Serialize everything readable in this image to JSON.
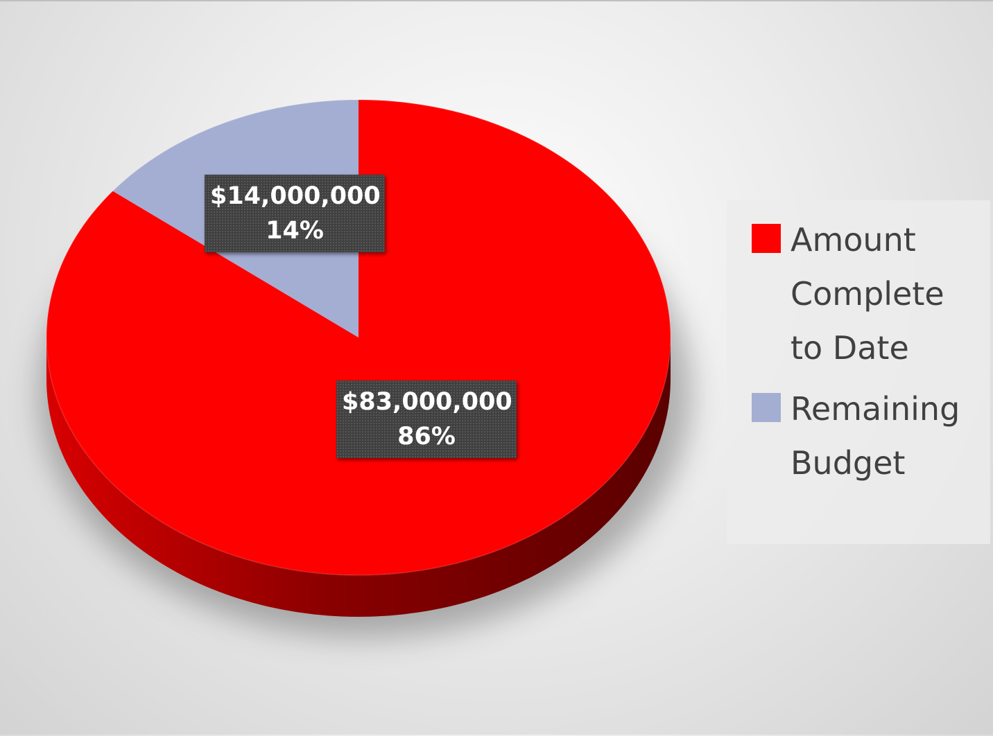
{
  "chart_data": {
    "type": "pie",
    "title": "",
    "slices": [
      {
        "name": "Amount Complete to Date",
        "value": 83000000,
        "value_label": "$83,000,000",
        "percent": 86,
        "percent_label": "86%",
        "color": "#ff0000"
      },
      {
        "name": "Remaining Budget",
        "value": 14000000,
        "value_label": "$14,000,000",
        "percent": 14,
        "percent_label": "14%",
        "color": "#a4aed3"
      }
    ],
    "style": "3d",
    "legend_position": "right"
  }
}
